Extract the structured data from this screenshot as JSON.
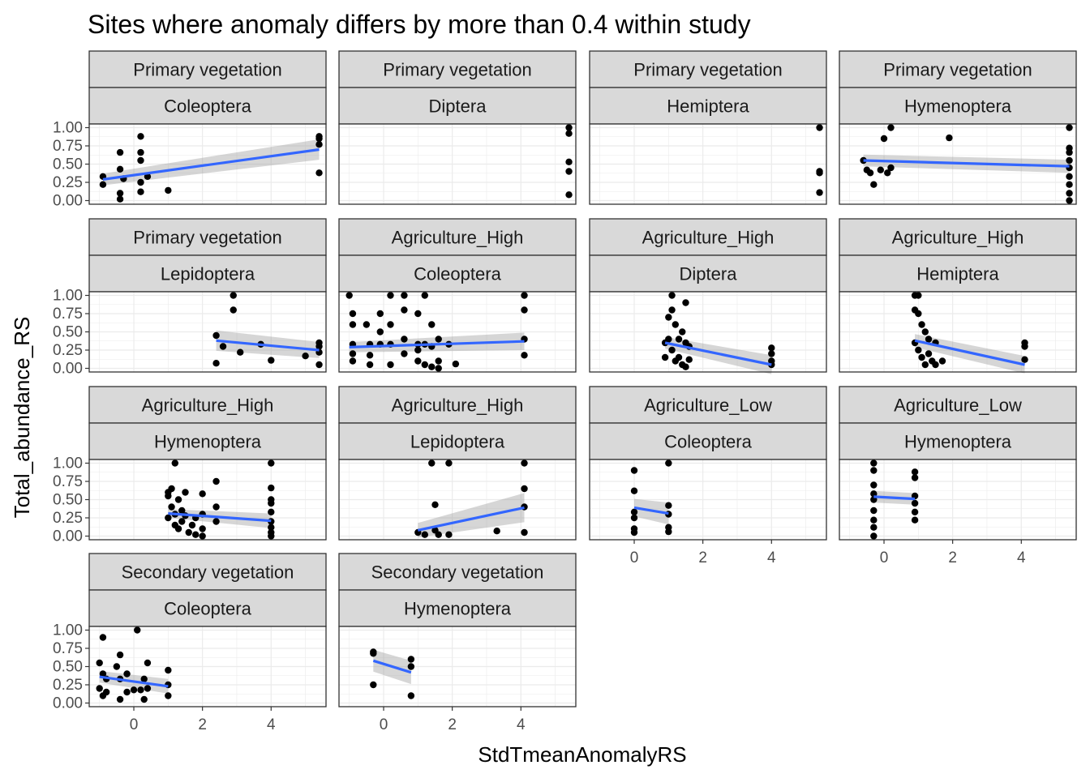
{
  "chart_data": {
    "type": "scatter",
    "title": "Sites where anomaly differs by more than 0.4 within study",
    "xlabel": "StdTmeanAnomalyRS",
    "ylabel": "Total_abundance_RS",
    "xlim": [
      -1.3,
      5.6
    ],
    "ylim": [
      -0.05,
      1.05
    ],
    "x_ticks": [
      0,
      2,
      4
    ],
    "y_ticks": [
      "0.00",
      "0.25",
      "0.50",
      "0.75",
      "1.00"
    ],
    "grid": true,
    "colors": {
      "points": "#000000",
      "smooth_line": "#3366FF",
      "ribbon": "#999999",
      "strip_fill": "#D9D9D9",
      "panel_border": "#333333",
      "grid_major": "#EBEBEB"
    },
    "panels": [
      {
        "land_use": "Primary vegetation",
        "order": "Coleoptera",
        "points": [
          [
            -0.9,
            0.33
          ],
          [
            -0.9,
            0.22
          ],
          [
            -0.4,
            0.66
          ],
          [
            -0.4,
            0.43
          ],
          [
            -0.4,
            0.1
          ],
          [
            -0.4,
            0.02
          ],
          [
            -0.3,
            0.3
          ],
          [
            0.2,
            0.88
          ],
          [
            0.2,
            0.66
          ],
          [
            0.2,
            0.55
          ],
          [
            0.2,
            0.25
          ],
          [
            0.2,
            0.12
          ],
          [
            0.4,
            0.33
          ],
          [
            1.0,
            0.14
          ],
          [
            5.4,
            0.88
          ],
          [
            5.4,
            0.85
          ],
          [
            5.4,
            0.77
          ],
          [
            5.4,
            0.38
          ]
        ],
        "fit": {
          "x0": -0.9,
          "y0": 0.29,
          "x1": 5.4,
          "y1": 0.7,
          "se0": 0.08,
          "se1": 0.14
        }
      },
      {
        "land_use": "Primary vegetation",
        "order": "Diptera",
        "points": [
          [
            5.4,
            1.0
          ],
          [
            5.4,
            0.92
          ],
          [
            5.4,
            0.53
          ],
          [
            5.4,
            0.4
          ],
          [
            5.4,
            0.08
          ]
        ],
        "fit": null
      },
      {
        "land_use": "Primary vegetation",
        "order": "Hemiptera",
        "points": [
          [
            5.4,
            1.0
          ],
          [
            5.4,
            0.4
          ],
          [
            5.4,
            0.38
          ],
          [
            5.4,
            0.11
          ]
        ],
        "fit": null
      },
      {
        "land_use": "Primary vegetation",
        "order": "Hymenoptera",
        "points": [
          [
            -0.6,
            0.55
          ],
          [
            -0.5,
            0.42
          ],
          [
            -0.4,
            0.38
          ],
          [
            -0.3,
            0.22
          ],
          [
            -0.1,
            0.42
          ],
          [
            0.0,
            0.85
          ],
          [
            0.2,
            1.0
          ],
          [
            0.2,
            0.45
          ],
          [
            0.1,
            0.38
          ],
          [
            1.9,
            0.86
          ],
          [
            5.4,
            1.0
          ],
          [
            5.4,
            0.72
          ],
          [
            5.4,
            0.66
          ],
          [
            5.4,
            0.55
          ],
          [
            5.4,
            0.45
          ],
          [
            5.4,
            0.33
          ],
          [
            5.4,
            0.22
          ],
          [
            5.4,
            0.1
          ],
          [
            5.4,
            0.0
          ]
        ],
        "fit": {
          "x0": -0.6,
          "y0": 0.55,
          "x1": 5.4,
          "y1": 0.47,
          "se0": 0.08,
          "se1": 0.09
        }
      },
      {
        "land_use": "Primary vegetation",
        "order": "Lepidoptera",
        "points": [
          [
            2.4,
            0.45
          ],
          [
            2.4,
            0.07
          ],
          [
            2.6,
            0.3
          ],
          [
            2.9,
            1.0
          ],
          [
            2.9,
            0.8
          ],
          [
            3.1,
            0.22
          ],
          [
            3.7,
            0.33
          ],
          [
            4.0,
            0.11
          ],
          [
            5.4,
            0.35
          ],
          [
            5.4,
            0.3
          ],
          [
            5.4,
            0.22
          ],
          [
            5.4,
            0.05
          ],
          [
            5.0,
            0.17
          ]
        ],
        "fit": {
          "x0": 2.4,
          "y0": 0.38,
          "x1": 5.4,
          "y1": 0.25,
          "se0": 0.14,
          "se1": 0.11
        }
      },
      {
        "land_use": "Agriculture_High",
        "order": "Coleoptera",
        "points": [
          [
            -1.0,
            1.0
          ],
          [
            -0.9,
            0.75
          ],
          [
            -0.9,
            0.6
          ],
          [
            -0.9,
            0.33
          ],
          [
            -0.9,
            0.2
          ],
          [
            -0.9,
            0.1
          ],
          [
            -0.5,
            0.6
          ],
          [
            -0.4,
            0.33
          ],
          [
            -0.4,
            0.18
          ],
          [
            -0.4,
            0.05
          ],
          [
            -0.1,
            0.75
          ],
          [
            -0.1,
            0.5
          ],
          [
            -0.1,
            0.33
          ],
          [
            0.2,
            1.0
          ],
          [
            0.2,
            0.6
          ],
          [
            0.2,
            0.33
          ],
          [
            0.2,
            0.05
          ],
          [
            0.6,
            1.0
          ],
          [
            0.6,
            0.8
          ],
          [
            0.6,
            0.4
          ],
          [
            0.6,
            0.2
          ],
          [
            1.0,
            0.75
          ],
          [
            1.0,
            0.33
          ],
          [
            1.0,
            0.25
          ],
          [
            1.0,
            0.1
          ],
          [
            1.2,
            1.0
          ],
          [
            1.2,
            0.33
          ],
          [
            1.2,
            0.05
          ],
          [
            1.4,
            0.6
          ],
          [
            1.4,
            0.3
          ],
          [
            1.4,
            0.02
          ],
          [
            1.6,
            0.4
          ],
          [
            1.6,
            0.1
          ],
          [
            1.6,
            0.0
          ],
          [
            1.9,
            0.33
          ],
          [
            2.1,
            0.06
          ],
          [
            4.1,
            1.0
          ],
          [
            4.1,
            0.8
          ],
          [
            4.1,
            0.4
          ],
          [
            4.1,
            0.18
          ]
        ],
        "fit": {
          "x0": -1.0,
          "y0": 0.29,
          "x1": 4.1,
          "y1": 0.37,
          "se0": 0.07,
          "se1": 0.12
        }
      },
      {
        "land_use": "Agriculture_High",
        "order": "Diptera",
        "points": [
          [
            0.9,
            0.35
          ],
          [
            0.9,
            0.15
          ],
          [
            1.0,
            0.7
          ],
          [
            1.0,
            0.4
          ],
          [
            1.1,
            1.0
          ],
          [
            1.1,
            0.8
          ],
          [
            1.1,
            0.25
          ],
          [
            1.2,
            0.6
          ],
          [
            1.2,
            0.1
          ],
          [
            1.3,
            0.4
          ],
          [
            1.3,
            0.15
          ],
          [
            1.4,
            0.5
          ],
          [
            1.4,
            0.05
          ],
          [
            1.5,
            0.9
          ],
          [
            1.5,
            0.35
          ],
          [
            1.5,
            0.02
          ],
          [
            1.6,
            0.3
          ],
          [
            1.6,
            0.12
          ],
          [
            4.0,
            0.28
          ],
          [
            4.0,
            0.2
          ],
          [
            4.0,
            0.1
          ],
          [
            4.0,
            0.05
          ]
        ],
        "fit": {
          "x0": 0.9,
          "y0": 0.35,
          "x1": 4.0,
          "y1": 0.05,
          "se0": 0.08,
          "se1": 0.13
        }
      },
      {
        "land_use": "Agriculture_High",
        "order": "Hemiptera",
        "points": [
          [
            0.9,
            1.0
          ],
          [
            0.9,
            0.8
          ],
          [
            0.9,
            0.35
          ],
          [
            1.0,
            1.0
          ],
          [
            1.0,
            0.75
          ],
          [
            1.0,
            0.25
          ],
          [
            1.1,
            0.6
          ],
          [
            1.1,
            0.15
          ],
          [
            1.2,
            0.5
          ],
          [
            1.2,
            0.05
          ],
          [
            1.3,
            0.4
          ],
          [
            1.3,
            0.2
          ],
          [
            1.4,
            0.1
          ],
          [
            1.5,
            0.35
          ],
          [
            1.5,
            0.05
          ],
          [
            1.7,
            0.1
          ],
          [
            4.1,
            0.35
          ],
          [
            4.1,
            0.3
          ],
          [
            4.1,
            0.12
          ]
        ],
        "fit": {
          "x0": 0.9,
          "y0": 0.38,
          "x1": 4.1,
          "y1": 0.05,
          "se0": 0.09,
          "se1": 0.12
        }
      },
      {
        "land_use": "Agriculture_High",
        "order": "Hymenoptera",
        "points": [
          [
            1.0,
            0.6
          ],
          [
            1.0,
            0.55
          ],
          [
            1.0,
            0.25
          ],
          [
            1.1,
            0.65
          ],
          [
            1.1,
            0.4
          ],
          [
            1.2,
            1.0
          ],
          [
            1.2,
            0.3
          ],
          [
            1.2,
            0.15
          ],
          [
            1.3,
            0.5
          ],
          [
            1.3,
            0.1
          ],
          [
            1.4,
            0.35
          ],
          [
            1.4,
            0.2
          ],
          [
            1.5,
            0.6
          ],
          [
            1.5,
            0.28
          ],
          [
            1.6,
            0.05
          ],
          [
            1.7,
            0.15
          ],
          [
            1.8,
            0.25
          ],
          [
            1.8,
            0.02
          ],
          [
            2.0,
            0.58
          ],
          [
            2.0,
            0.3
          ],
          [
            2.0,
            0.1
          ],
          [
            2.0,
            0.0
          ],
          [
            2.4,
            0.75
          ],
          [
            2.4,
            0.4
          ],
          [
            2.4,
            0.2
          ],
          [
            4.0,
            1.0
          ],
          [
            4.0,
            0.66
          ],
          [
            4.0,
            0.5
          ],
          [
            4.0,
            0.45
          ],
          [
            4.0,
            0.33
          ],
          [
            4.0,
            0.2
          ],
          [
            4.0,
            0.12
          ],
          [
            4.0,
            0.05
          ],
          [
            4.0,
            0.0
          ]
        ],
        "fit": {
          "x0": 1.0,
          "y0": 0.31,
          "x1": 4.0,
          "y1": 0.21,
          "se0": 0.06,
          "se1": 0.1
        }
      },
      {
        "land_use": "Agriculture_High",
        "order": "Lepidoptera",
        "points": [
          [
            1.0,
            0.05
          ],
          [
            1.2,
            0.02
          ],
          [
            1.4,
            1.0
          ],
          [
            1.5,
            0.43
          ],
          [
            1.5,
            0.08
          ],
          [
            1.6,
            0.02
          ],
          [
            1.9,
            1.0
          ],
          [
            1.9,
            0.02
          ],
          [
            3.3,
            0.07
          ],
          [
            4.1,
            1.0
          ],
          [
            4.1,
            0.65
          ],
          [
            4.1,
            0.4
          ],
          [
            4.1,
            0.05
          ]
        ],
        "fit": {
          "x0": 1.0,
          "y0": 0.08,
          "x1": 4.1,
          "y1": 0.39,
          "se0": 0.1,
          "se1": 0.2
        }
      },
      {
        "land_use": "Agriculture_Low",
        "order": "Coleoptera",
        "points": [
          [
            0.0,
            0.9
          ],
          [
            0.0,
            0.62
          ],
          [
            0.0,
            0.33
          ],
          [
            0.0,
            0.25
          ],
          [
            0.0,
            0.1
          ],
          [
            0.0,
            0.05
          ],
          [
            1.0,
            1.0
          ],
          [
            1.0,
            0.42
          ],
          [
            1.0,
            0.3
          ],
          [
            1.0,
            0.12
          ],
          [
            1.0,
            0.06
          ]
        ],
        "fit": {
          "x0": 0.0,
          "y0": 0.39,
          "x1": 1.0,
          "y1": 0.31,
          "se0": 0.12,
          "se1": 0.15
        }
      },
      {
        "land_use": "Agriculture_Low",
        "order": "Hymenoptera",
        "points": [
          [
            -0.3,
            1.0
          ],
          [
            -0.3,
            0.9
          ],
          [
            -0.3,
            0.7
          ],
          [
            -0.3,
            0.58
          ],
          [
            -0.3,
            0.5
          ],
          [
            -0.3,
            0.35
          ],
          [
            -0.3,
            0.22
          ],
          [
            -0.3,
            0.12
          ],
          [
            -0.3,
            0.0
          ],
          [
            0.9,
            0.88
          ],
          [
            0.9,
            0.8
          ],
          [
            0.9,
            0.55
          ],
          [
            0.9,
            0.45
          ],
          [
            0.9,
            0.33
          ],
          [
            0.9,
            0.22
          ]
        ],
        "fit": {
          "x0": -0.3,
          "y0": 0.54,
          "x1": 0.9,
          "y1": 0.51,
          "se0": 0.08,
          "se1": 0.08
        }
      },
      {
        "land_use": "Secondary vegetation",
        "order": "Coleoptera",
        "points": [
          [
            -1.0,
            0.55
          ],
          [
            -1.0,
            0.2
          ],
          [
            -0.9,
            0.9
          ],
          [
            -0.9,
            0.4
          ],
          [
            -0.9,
            0.1
          ],
          [
            -0.8,
            0.33
          ],
          [
            -0.8,
            0.15
          ],
          [
            -0.5,
            0.5
          ],
          [
            -0.4,
            0.66
          ],
          [
            -0.4,
            0.33
          ],
          [
            -0.4,
            0.05
          ],
          [
            -0.2,
            0.15
          ],
          [
            -0.2,
            0.4
          ],
          [
            0.0,
            0.18
          ],
          [
            0.1,
            1.0
          ],
          [
            0.2,
            0.18
          ],
          [
            0.3,
            0.33
          ],
          [
            0.3,
            0.05
          ],
          [
            0.4,
            0.55
          ],
          [
            0.4,
            0.2
          ],
          [
            1.0,
            0.45
          ],
          [
            1.0,
            0.25
          ],
          [
            1.0,
            0.1
          ]
        ],
        "fit": {
          "x0": -1.0,
          "y0": 0.36,
          "x1": 1.0,
          "y1": 0.23,
          "se0": 0.08,
          "se1": 0.1
        }
      },
      {
        "land_use": "Secondary vegetation",
        "order": "Hymenoptera",
        "points": [
          [
            -0.3,
            0.7
          ],
          [
            -0.3,
            0.68
          ],
          [
            -0.3,
            0.25
          ],
          [
            0.8,
            0.6
          ],
          [
            0.8,
            0.5
          ],
          [
            0.8,
            0.1
          ]
        ],
        "fit": {
          "x0": -0.3,
          "y0": 0.58,
          "x1": 0.8,
          "y1": 0.42,
          "se0": 0.15,
          "se1": 0.16
        }
      }
    ]
  }
}
